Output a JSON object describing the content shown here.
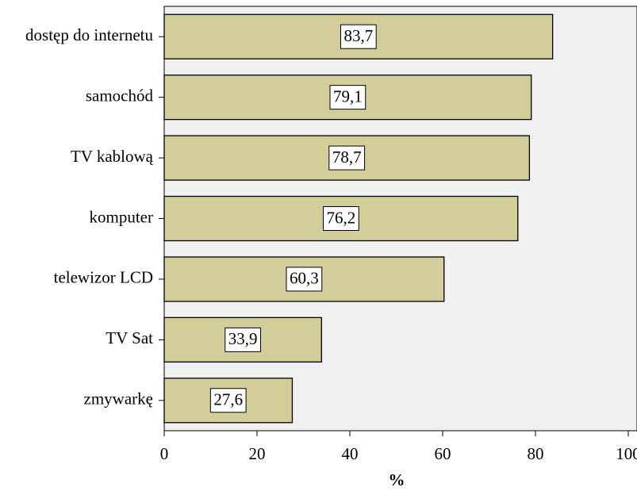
{
  "chart_data": {
    "type": "bar",
    "orientation": "horizontal",
    "x_label": "%",
    "categories": [
      "dostęp do internetu",
      "samochód",
      "TV kablową",
      "komputer",
      "telewizor LCD",
      "TV Sat",
      "zmywarkę"
    ],
    "values": [
      83.7,
      79.1,
      78.7,
      76.2,
      60.3,
      33.9,
      27.6
    ],
    "value_labels": [
      "83,7",
      "79,1",
      "78,7",
      "76,2",
      "60,3",
      "33,9",
      "27,6"
    ],
    "color": "#d3cd99",
    "xlim": [
      0,
      100
    ],
    "xticks": [
      0,
      20,
      40,
      60,
      80,
      100
    ]
  }
}
